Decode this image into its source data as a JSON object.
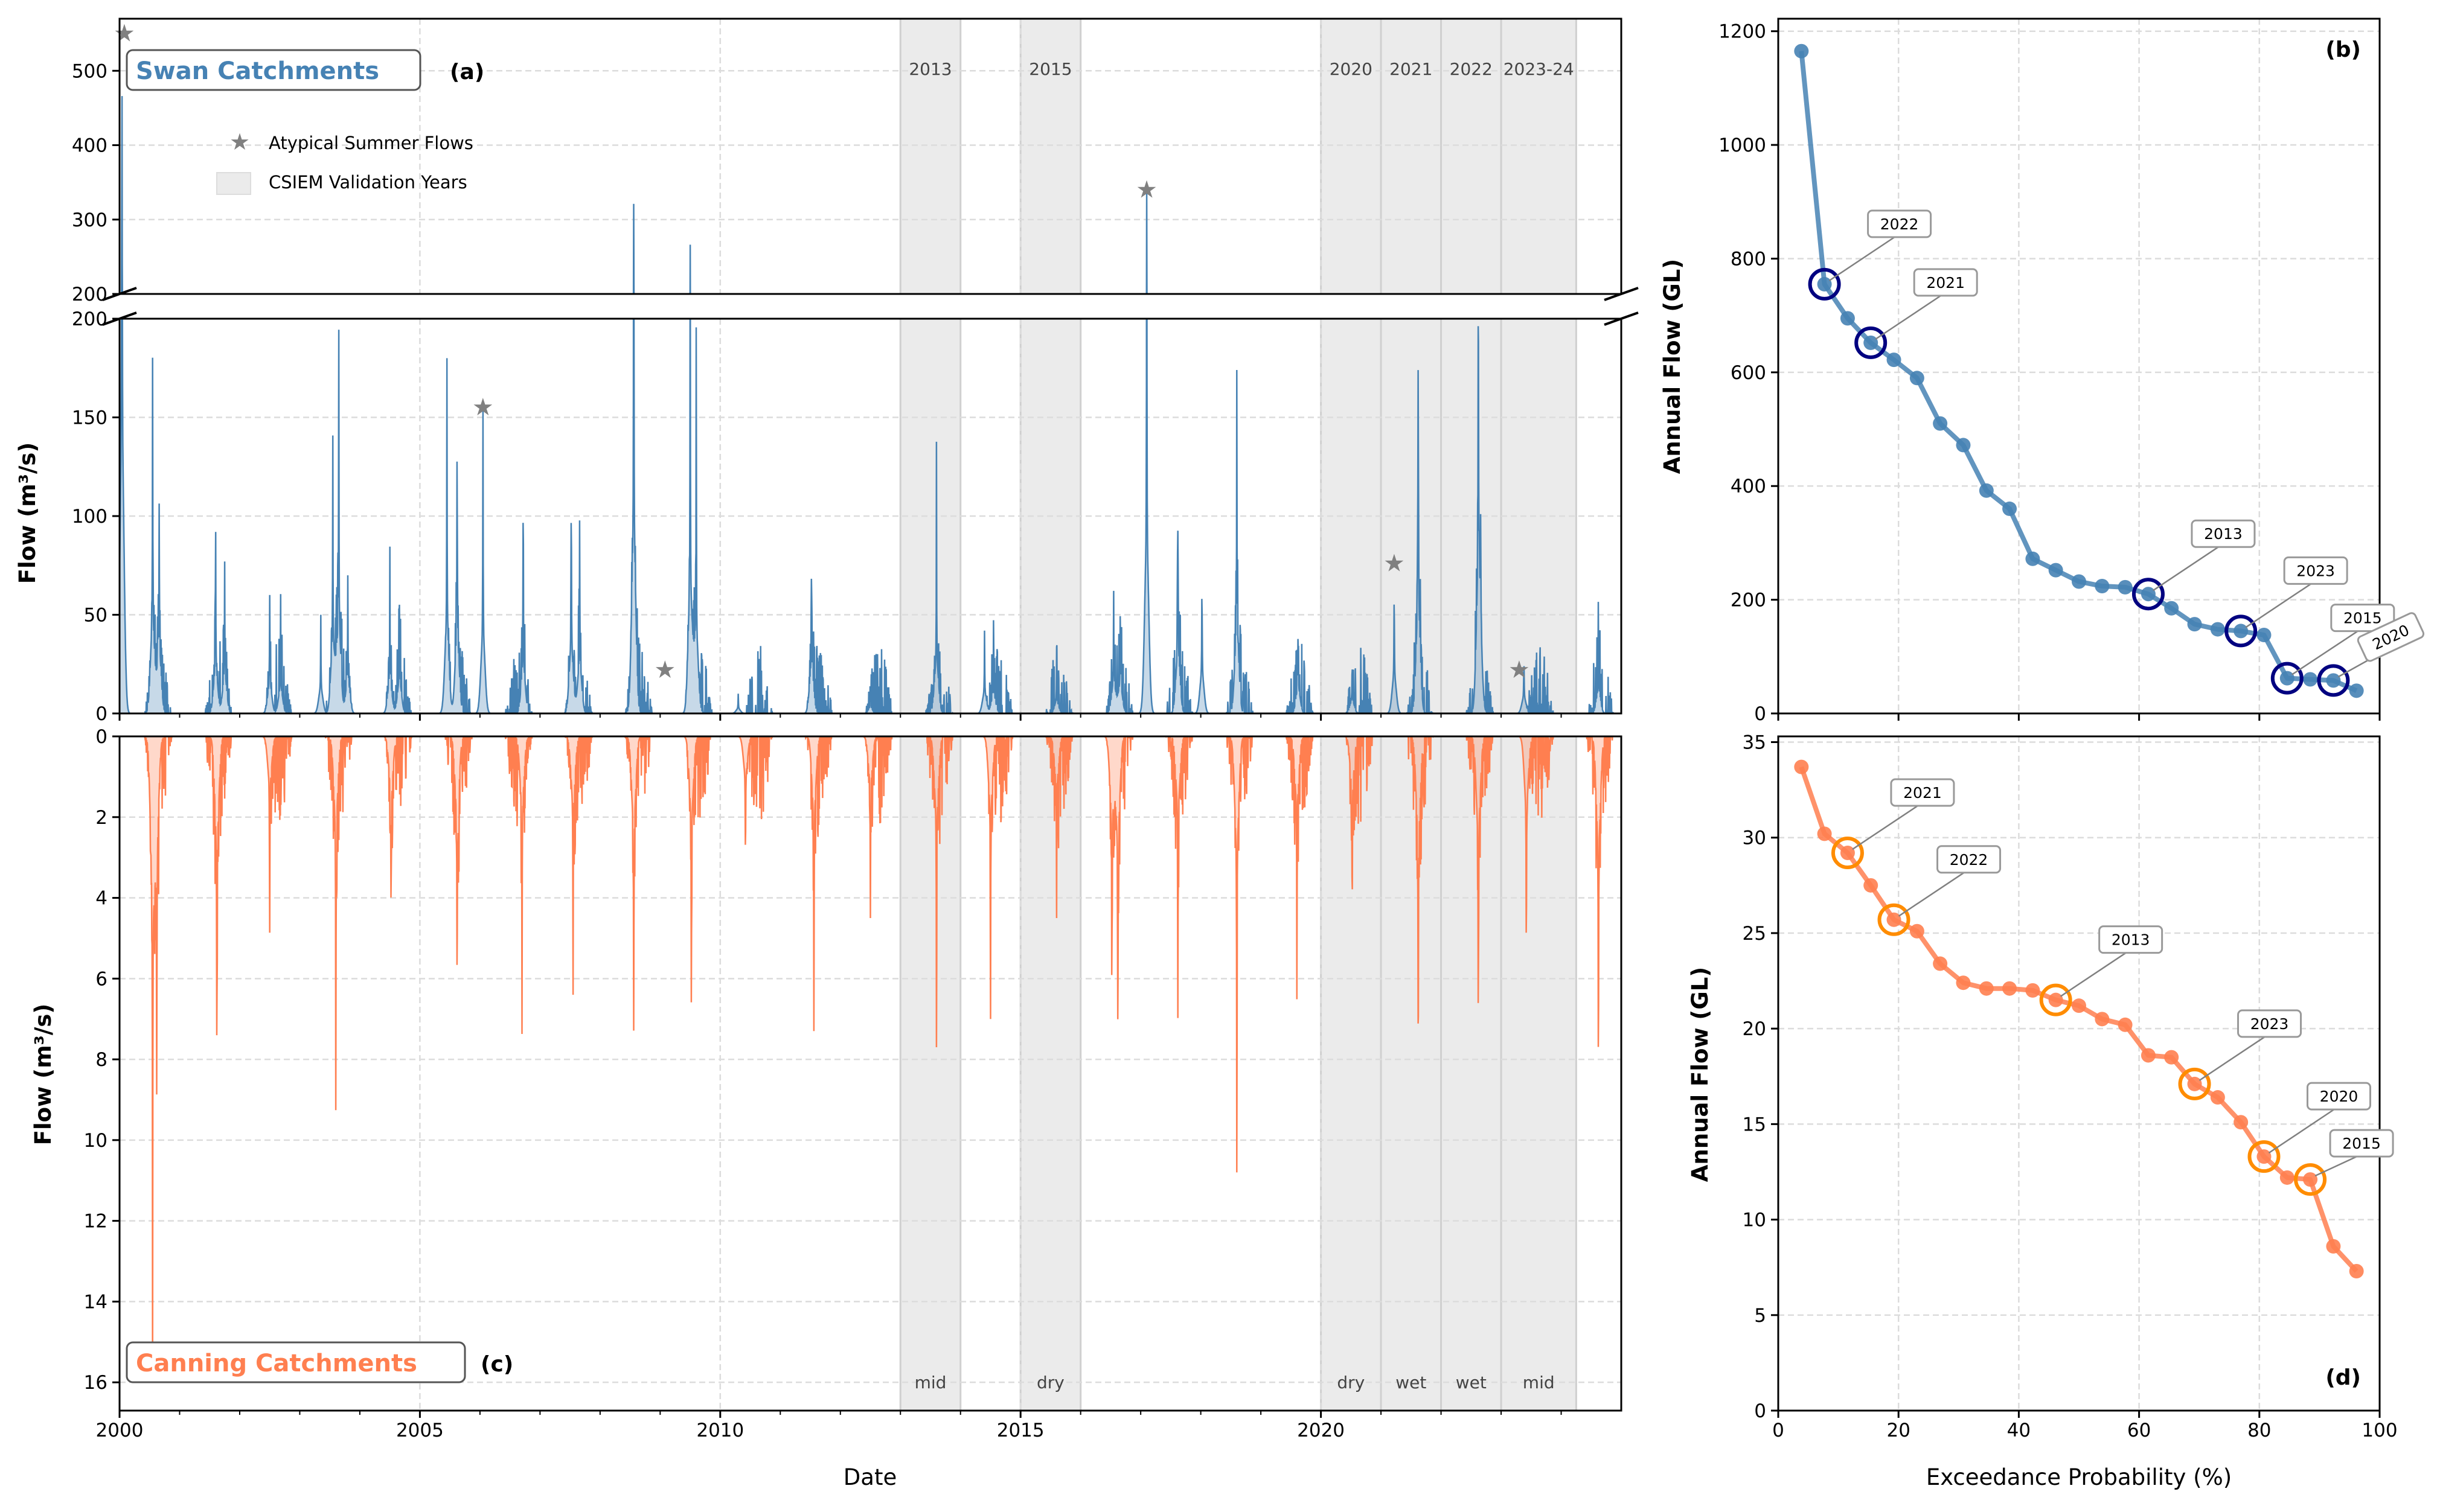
{
  "colors": {
    "swan": "#4682b4",
    "canning": "#ff7f50",
    "swan_highlight": "#000080",
    "canning_highlight": "#ff8c00",
    "band": "#ebebeb",
    "star": "#808080"
  },
  "chart_data": [
    {
      "panel": "(a)",
      "type": "area",
      "title": "Swan Catchments",
      "xlabel": "",
      "ylabel": "Flow (m³/s)",
      "xlim": [
        2000,
        2025
      ],
      "y_break": true,
      "ylim_lower": [
        0,
        200
      ],
      "ylim_upper": [
        200,
        570
      ],
      "yticks_lower": [
        0,
        50,
        100,
        150,
        200
      ],
      "yticks_upper": [
        200,
        300,
        400,
        500
      ],
      "grid": true,
      "legend": {
        "placement": "upper-left",
        "entries": [
          {
            "label": "Atypical Summer Flows",
            "icon": "star-icon"
          },
          {
            "label": "CSIEM Validation Years",
            "icon": "shaded-patch"
          }
        ]
      },
      "validation_years": [
        {
          "label": "2013",
          "start": 2013,
          "end": 2014,
          "class": "mid"
        },
        {
          "label": "2015",
          "start": 2015,
          "end": 2016,
          "class": "dry"
        },
        {
          "label": "2020",
          "start": 2020,
          "end": 2021,
          "class": "dry"
        },
        {
          "label": "2021",
          "start": 2021,
          "end": 2022,
          "class": "wet"
        },
        {
          "label": "2022",
          "start": 2022,
          "end": 2023,
          "class": "wet"
        },
        {
          "label": "2023-24",
          "start": 2023,
          "end": 2024.25,
          "class": "mid"
        }
      ],
      "atypical_summer_flows": [
        [
          2000.08,
          550
        ],
        [
          2006.05,
          155
        ],
        [
          2009.08,
          22
        ],
        [
          2017.1,
          340
        ],
        [
          2021.22,
          76
        ],
        [
          2023.3,
          22
        ]
      ],
      "flow_peaks": [
        [
          2000.04,
          550
        ],
        [
          2000.55,
          180
        ],
        [
          2000.66,
          125
        ],
        [
          2001.6,
          92
        ],
        [
          2001.75,
          77
        ],
        [
          2002.5,
          60
        ],
        [
          2002.68,
          52
        ],
        [
          2003.35,
          50
        ],
        [
          2003.55,
          140
        ],
        [
          2003.65,
          180
        ],
        [
          2003.8,
          70
        ],
        [
          2004.5,
          68
        ],
        [
          2004.66,
          65
        ],
        [
          2005.45,
          180
        ],
        [
          2005.62,
          157
        ],
        [
          2006.05,
          155
        ],
        [
          2006.72,
          96
        ],
        [
          2007.52,
          133
        ],
        [
          2007.66,
          100
        ],
        [
          2008.56,
          365
        ],
        [
          2009.5,
          250
        ],
        [
          2009.6,
          163
        ],
        [
          2010.3,
          10
        ],
        [
          2011.52,
          94
        ],
        [
          2012.5,
          12
        ],
        [
          2013.6,
          107
        ],
        [
          2014.4,
          42
        ],
        [
          2014.55,
          40
        ],
        [
          2015.6,
          25
        ],
        [
          2016.55,
          62
        ],
        [
          2016.66,
          58
        ],
        [
          2017.1,
          340
        ],
        [
          2017.62,
          122
        ],
        [
          2018.02,
          80
        ],
        [
          2018.6,
          174
        ],
        [
          2019.62,
          52
        ],
        [
          2020.52,
          27
        ],
        [
          2021.22,
          76
        ],
        [
          2021.62,
          220
        ],
        [
          2022.62,
          257
        ],
        [
          2022.66,
          78
        ],
        [
          2023.38,
          33
        ],
        [
          2024.62,
          47
        ]
      ]
    },
    {
      "panel": "(b)",
      "type": "line",
      "xlabel": "",
      "ylabel": "Annual Flow (GL)",
      "xlim": [
        0,
        100
      ],
      "ylim": [
        0,
        1222
      ],
      "xticks": [
        0,
        20,
        40,
        60,
        80,
        100
      ],
      "yticks": [
        0,
        200,
        400,
        600,
        800,
        1000,
        1200
      ],
      "grid": true,
      "x": [
        3.85,
        7.69,
        11.54,
        15.38,
        19.23,
        23.08,
        26.92,
        30.77,
        34.62,
        38.46,
        42.31,
        46.15,
        50.0,
        53.85,
        57.69,
        61.54,
        65.38,
        69.23,
        73.08,
        76.92,
        80.77,
        84.62,
        88.46,
        92.31,
        96.15
      ],
      "y": [
        1165,
        755,
        695,
        652,
        622,
        590,
        510,
        472,
        392,
        360,
        272,
        252,
        232,
        224,
        222,
        210,
        185,
        157,
        148,
        145,
        138,
        62,
        60,
        58,
        40
      ],
      "highlights": [
        {
          "label": "2022",
          "index": 1
        },
        {
          "label": "2021",
          "index": 3
        },
        {
          "label": "2013",
          "index": 15
        },
        {
          "label": "2023",
          "index": 19
        },
        {
          "label": "2015",
          "index": 21
        },
        {
          "label": "2020",
          "index": 23
        }
      ]
    },
    {
      "panel": "(c)",
      "type": "area",
      "title": "Canning Catchments",
      "xlabel": "Date",
      "ylabel": "Flow (m³/s)",
      "y_inverted": true,
      "xlim": [
        2000,
        2025
      ],
      "ylim": [
        0,
        16.7
      ],
      "xticks": [
        2000,
        2005,
        2010,
        2015,
        2020
      ],
      "yticks": [
        0,
        2,
        4,
        6,
        8,
        10,
        12,
        14,
        16
      ],
      "grid": true,
      "flow_peaks": [
        [
          2000.55,
          15.5
        ],
        [
          2000.62,
          9.7
        ],
        [
          2001.62,
          10.2
        ],
        [
          2002.5,
          4.5
        ],
        [
          2003.6,
          8.4
        ],
        [
          2004.52,
          5.5
        ],
        [
          2005.62,
          7.8
        ],
        [
          2006.7,
          6.7
        ],
        [
          2007.55,
          6.4
        ],
        [
          2008.56,
          8.6
        ],
        [
          2009.52,
          7.7
        ],
        [
          2010.42,
          3.7
        ],
        [
          2011.56,
          7.5
        ],
        [
          2012.5,
          4.5
        ],
        [
          2013.6,
          7.7
        ],
        [
          2014.5,
          7.0
        ],
        [
          2015.6,
          4.5
        ],
        [
          2016.52,
          7.5
        ],
        [
          2016.62,
          9.6
        ],
        [
          2017.62,
          6.7
        ],
        [
          2018.6,
          10.8
        ],
        [
          2019.6,
          6.3
        ],
        [
          2020.52,
          4.8
        ],
        [
          2021.62,
          9.8
        ],
        [
          2022.62,
          9.1
        ],
        [
          2023.42,
          6.7
        ],
        [
          2024.62,
          10.6
        ]
      ]
    },
    {
      "panel": "(d)",
      "type": "line",
      "xlabel": "Exceedance Probability (%)",
      "ylabel": "Annual Flow (GL)",
      "xlim": [
        0,
        100
      ],
      "ylim": [
        0,
        35.3
      ],
      "xticks": [
        0,
        20,
        40,
        60,
        80,
        100
      ],
      "yticks": [
        0,
        5,
        10,
        15,
        20,
        25,
        30,
        35
      ],
      "grid": true,
      "x": [
        3.85,
        7.69,
        11.54,
        15.38,
        19.23,
        23.08,
        26.92,
        30.77,
        34.62,
        38.46,
        42.31,
        46.15,
        50.0,
        53.85,
        57.69,
        61.54,
        65.38,
        69.23,
        73.08,
        76.92,
        80.77,
        84.62,
        88.46,
        92.31,
        96.15
      ],
      "y": [
        33.7,
        30.2,
        29.2,
        27.5,
        25.7,
        25.1,
        23.4,
        22.4,
        22.1,
        22.1,
        22.0,
        21.5,
        21.2,
        20.5,
        20.2,
        18.6,
        18.5,
        17.1,
        16.4,
        15.1,
        13.3,
        12.2,
        12.1,
        8.6,
        7.3
      ],
      "highlights": [
        {
          "label": "2021",
          "index": 2
        },
        {
          "label": "2022",
          "index": 4
        },
        {
          "label": "2013",
          "index": 11
        },
        {
          "label": "2023",
          "index": 17
        },
        {
          "label": "2020",
          "index": 20
        },
        {
          "label": "2015",
          "index": 22
        }
      ]
    }
  ]
}
